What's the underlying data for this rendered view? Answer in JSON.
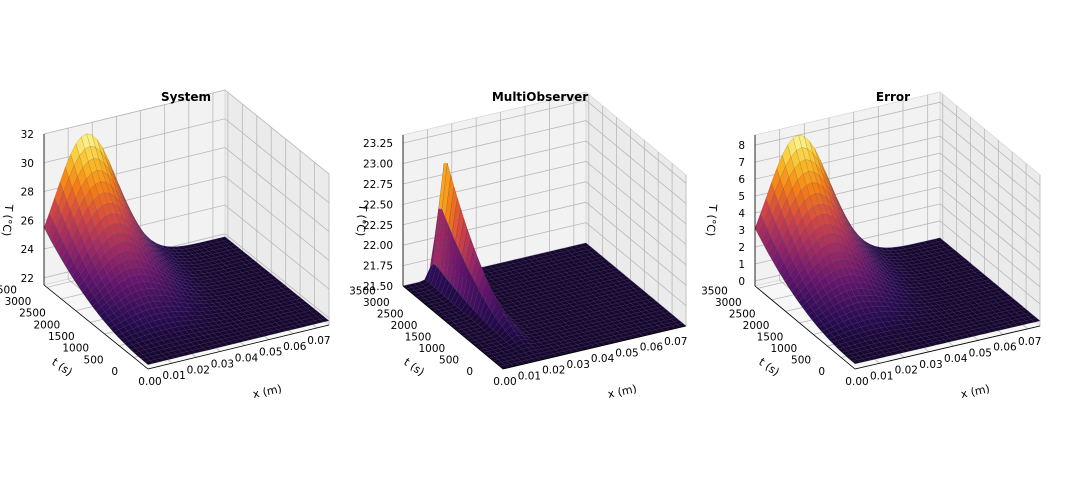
{
  "chart_data": [
    {
      "type": "surface3d",
      "title": "System",
      "xlabel": "x (m)",
      "ylabel": "t (s)",
      "zlabel": "T (°C)",
      "x_ticks": [
        "0.00",
        "0.01",
        "0.02",
        "0.03",
        "0.04",
        "0.05",
        "0.06",
        "0.07"
      ],
      "y_ticks": [
        "0",
        "500",
        "1000",
        "1500",
        "2000",
        "2500",
        "3000",
        "3500"
      ],
      "z_ticks": [
        "22",
        "24",
        "26",
        "28",
        "30",
        "32"
      ],
      "xlim": [
        0,
        0.075
      ],
      "ylim": [
        0,
        3600
      ],
      "zlim": [
        21.5,
        32
      ],
      "surface": {
        "base": 21.8,
        "peak": 31.3,
        "peak_x": 0.0175,
        "peak_t": 3600,
        "x_width": 0.03,
        "colormap": "inferno"
      }
    },
    {
      "type": "surface3d",
      "title": "MultiObserver",
      "xlabel": "x (m)",
      "ylabel": "t (s)",
      "zlabel": "T (°C)",
      "x_ticks": [
        "0.00",
        "0.01",
        "0.02",
        "0.03",
        "0.04",
        "0.05",
        "0.06",
        "0.07"
      ],
      "y_ticks": [
        "0",
        "500",
        "1000",
        "1500",
        "2000",
        "2500",
        "3000",
        "3500"
      ],
      "z_ticks": [
        "21.50",
        "21.75",
        "22.00",
        "22.25",
        "22.50",
        "22.75",
        "23.00",
        "23.25"
      ],
      "xlim": [
        0,
        0.075
      ],
      "ylim": [
        0,
        3600
      ],
      "zlim": [
        21.5,
        23.35
      ],
      "surface": {
        "base": 21.5,
        "peak": 23.0,
        "peak_x": 0.0155,
        "peak_t": 3400,
        "x_width": 0.0055,
        "colormap": "inferno"
      }
    },
    {
      "type": "surface3d",
      "title": "Error",
      "xlabel": "x (m)",
      "ylabel": "t (s)",
      "zlabel": "T (°C)",
      "x_ticks": [
        "0.00",
        "0.01",
        "0.02",
        "0.03",
        "0.04",
        "0.05",
        "0.06",
        "0.07"
      ],
      "y_ticks": [
        "0",
        "500",
        "1000",
        "1500",
        "2000",
        "2500",
        "3000",
        "3500"
      ],
      "z_ticks": [
        "0",
        "1",
        "2",
        "3",
        "4",
        "5",
        "6",
        "7",
        "8"
      ],
      "xlim": [
        0,
        0.075
      ],
      "ylim": [
        0,
        3600
      ],
      "zlim": [
        -0.3,
        8.6
      ],
      "surface": {
        "base": 0.0,
        "peak": 8.0,
        "peak_x": 0.0175,
        "peak_t": 3600,
        "x_width": 0.03,
        "colormap": "inferno"
      }
    }
  ]
}
